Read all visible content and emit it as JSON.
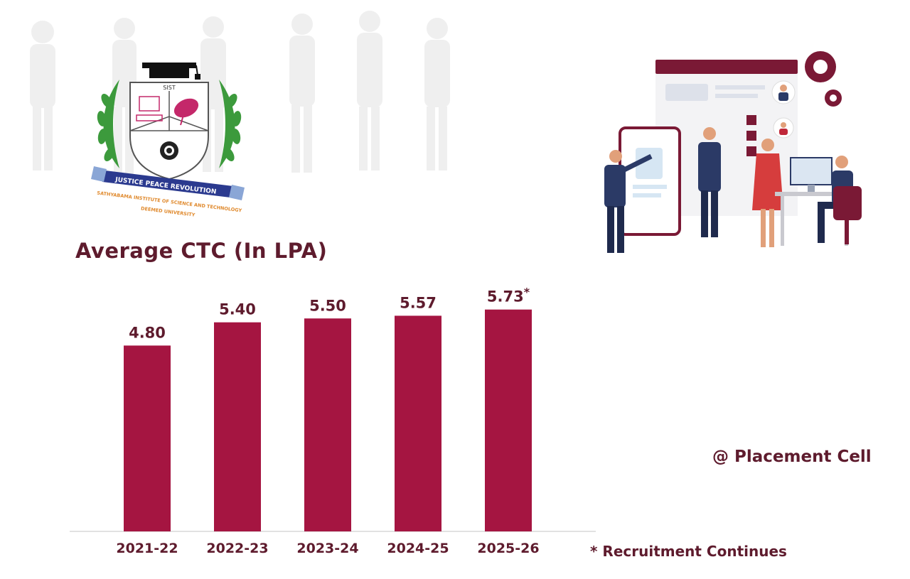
{
  "title": "Average CTC (In LPA)",
  "credit": "@ Placement Cell",
  "footnote": "* Recruitment Continues",
  "logo": {
    "abbr": "SIST",
    "motto": "JUSTICE PEACE REVOLUTION",
    "institution": "SATHYABAMA INSTITUTE OF SCIENCE AND TECHNOLOGY",
    "status": "DEEMED UNIVERSITY"
  },
  "colors": {
    "bar": "#a51541",
    "text": "#5e1b2d"
  },
  "chart_data": {
    "type": "bar",
    "title": "Average CTC (In LPA)",
    "categories": [
      "2021-22",
      "2022-23",
      "2023-24",
      "2024-25",
      "2025-26"
    ],
    "values": [
      4.8,
      5.4,
      5.5,
      5.57,
      5.73
    ],
    "data_labels": [
      "4.80",
      "5.40",
      "5.50",
      "5.57",
      "5.73"
    ],
    "label_markers": [
      "",
      "",
      "",
      "",
      "*"
    ],
    "xlabel": "",
    "ylabel": "",
    "ylim": [
      0,
      6
    ],
    "grid": false,
    "legend": "none"
  }
}
